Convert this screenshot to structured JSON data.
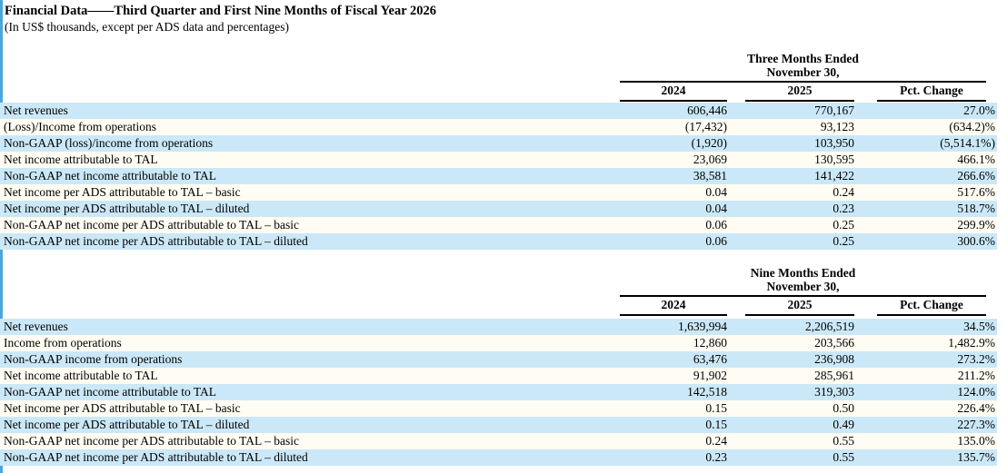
{
  "title": "Financial Data——Third Quarter and First Nine Months of Fiscal Year 2026",
  "subtitle": "(In US$ thousands, except per ADS data and percentages)",
  "colors": {
    "row_blue": "#cbe8f8",
    "row_cream": "#fffdf3",
    "left_edge_blue": "#4ba6da"
  },
  "tables": [
    {
      "period_line1": "Three Months Ended",
      "period_line2": "November 30,",
      "columns": [
        "2024",
        "2025",
        "Pct. Change"
      ],
      "rows": [
        {
          "label": "Net revenues",
          "v2024": "606,446",
          "v2025": "770,167",
          "pct": "27.0%"
        },
        {
          "label": "(Loss)/Income from operations",
          "v2024": "(17,432)",
          "v2025": "93,123",
          "pct": "(634.2)%"
        },
        {
          "label": "Non-GAAP (loss)/income from operations",
          "v2024": "(1,920)",
          "v2025": "103,950",
          "pct": "(5,514.1%)"
        },
        {
          "label": "Net income attributable to TAL",
          "v2024": "23,069",
          "v2025": "130,595",
          "pct": "466.1%"
        },
        {
          "label": "Non-GAAP net income attributable to TAL",
          "v2024": "38,581",
          "v2025": "141,422",
          "pct": "266.6%"
        },
        {
          "label": "Net income per ADS attributable to TAL – basic",
          "v2024": "0.04",
          "v2025": "0.24",
          "pct": "517.6%"
        },
        {
          "label": "Net income per ADS attributable to TAL – diluted",
          "v2024": "0.04",
          "v2025": "0.23",
          "pct": "518.7%"
        },
        {
          "label": "Non-GAAP net income per ADS attributable to TAL – basic",
          "v2024": "0.06",
          "v2025": "0.25",
          "pct": "299.9%"
        },
        {
          "label": "Non-GAAP net income per ADS attributable to TAL – diluted",
          "v2024": "0.06",
          "v2025": "0.25",
          "pct": "300.6%"
        }
      ]
    },
    {
      "period_line1": "Nine Months Ended",
      "period_line2": "November 30,",
      "columns": [
        "2024",
        "2025",
        "Pct. Change"
      ],
      "rows": [
        {
          "label": "Net revenues",
          "v2024": "1,639,994",
          "v2025": "2,206,519",
          "pct": "34.5%"
        },
        {
          "label": "Income from operations",
          "v2024": "12,860",
          "v2025": "203,566",
          "pct": "1,482.9%"
        },
        {
          "label": "Non-GAAP income from operations",
          "v2024": "63,476",
          "v2025": "236,908",
          "pct": "273.2%"
        },
        {
          "label": "Net income attributable to TAL",
          "v2024": "91,902",
          "v2025": "285,961",
          "pct": "211.2%"
        },
        {
          "label": "Non-GAAP net income attributable to TAL",
          "v2024": "142,518",
          "v2025": "319,303",
          "pct": "124.0%"
        },
        {
          "label": "Net income per ADS attributable to TAL – basic",
          "v2024": "0.15",
          "v2025": "0.50",
          "pct": "226.4%"
        },
        {
          "label": "Net income per ADS attributable to TAL – diluted",
          "v2024": "0.15",
          "v2025": "0.49",
          "pct": "227.3%"
        },
        {
          "label": "Non-GAAP net income per ADS attributable to TAL – basic",
          "v2024": "0.24",
          "v2025": "0.55",
          "pct": "135.0%"
        },
        {
          "label": "Non-GAAP net income per ADS attributable to TAL – diluted",
          "v2024": "0.23",
          "v2025": "0.55",
          "pct": "135.7%"
        }
      ]
    }
  ]
}
